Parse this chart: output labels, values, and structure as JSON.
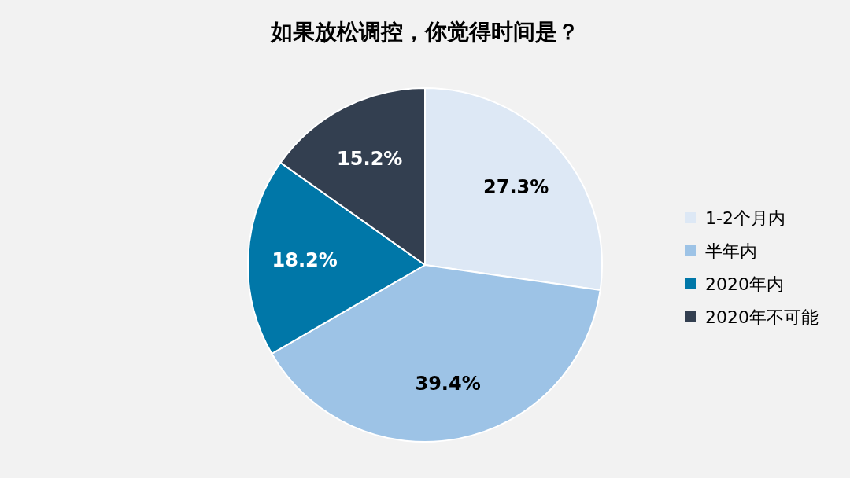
{
  "chart_data": {
    "type": "pie",
    "title": "如果放松调控，你觉得时间是？",
    "categories": [
      "1-2个月内",
      "半年内",
      "2020年内",
      "2020年不可能"
    ],
    "values": [
      27.3,
      39.4,
      18.2,
      15.2
    ],
    "colors": [
      "#dde8f5",
      "#9dc3e6",
      "#0077a8",
      "#333f50"
    ],
    "value_labels": [
      "27.3%",
      "39.4%",
      "18.2%",
      "15.2%"
    ],
    "legend": "right"
  }
}
